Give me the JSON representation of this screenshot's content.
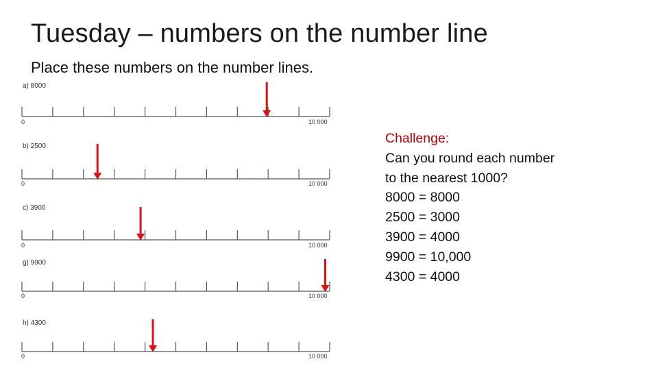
{
  "title": "Tuesday – numbers on the number line",
  "subtitle": "Place these numbers on the number lines.",
  "number_lines": [
    {
      "label": "a) 8000",
      "start": "0",
      "end": "10 000",
      "value": 8000
    },
    {
      "label": "b) 2500",
      "start": "0",
      "end": "10 000",
      "value": 2500
    },
    {
      "label": "c) 3900",
      "start": "0",
      "end": "10 000",
      "value": 3900
    },
    {
      "label": "g) 9900",
      "start": "0",
      "end": "10 000",
      "value": 9900
    },
    {
      "label": "h) 4300",
      "start": "0",
      "end": "10 000",
      "value": 4300
    }
  ],
  "challenge": {
    "title": "Challenge:",
    "lines": [
      "Can you round each number",
      "to the nearest 1000?",
      "8000 = 8000",
      "2500 = 3000",
      "3900 = 4000",
      "9900 = 10,000",
      "4300 = 4000"
    ]
  },
  "colors": {
    "arrow": "#e01010",
    "line": "#555555",
    "challenge_title": "#c00000"
  }
}
